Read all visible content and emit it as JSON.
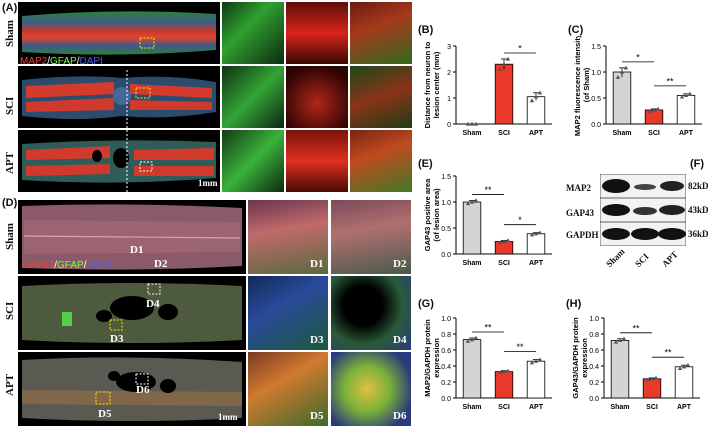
{
  "panels": {
    "A": {
      "label": "(A)",
      "rows": [
        "Sham",
        "SCI",
        "APT"
      ],
      "stain": [
        "MAP2",
        "/",
        "GFAP",
        "/",
        "DAPI"
      ],
      "scale_bar": "1mm"
    },
    "B": {
      "label": "(B)"
    },
    "C": {
      "label": "(C)"
    },
    "D": {
      "label": "(D)",
      "rows": [
        "Sham",
        "SCI",
        "APT"
      ],
      "stain": [
        "GAP43",
        "/",
        "GFAP",
        "/",
        "DAPI"
      ],
      "scale_bar": "1mm",
      "zones": [
        "D1",
        "D2",
        "D3",
        "D4",
        "D5",
        "D6"
      ]
    },
    "E": {
      "label": "(E)"
    },
    "F": {
      "label": "(F)",
      "blot_rows": [
        "MAP2",
        "GAP43",
        "GAPDH"
      ],
      "sizes": [
        "82kD",
        "43kD",
        "36kD"
      ],
      "lanes": [
        "Sham",
        "SCI",
        "APT"
      ]
    },
    "G": {
      "label": "(G)"
    },
    "H": {
      "label": "(H)"
    }
  },
  "colors": {
    "sham": "#d4d4d4",
    "sci": "#e8392b",
    "apt": "#ffffff",
    "red_stain": "#ff3b2f",
    "green_stain": "#7dff3a",
    "blue_stain": "#4a5cff"
  },
  "chart_data": [
    {
      "id": "B",
      "type": "bar",
      "categories": [
        "Sham",
        "SCI",
        "APT"
      ],
      "values": [
        0,
        2.3,
        1.05
      ],
      "points": [
        [
          0,
          0,
          0
        ],
        [
          2.1,
          2.3,
          2.5
        ],
        [
          0.9,
          1.05,
          1.2
        ]
      ],
      "ylabel": "Distance from neuron to lesion center (mm)",
      "ylim": [
        0,
        3
      ],
      "yticks": [
        "0",
        "1",
        "2",
        "3"
      ],
      "sig": [
        {
          "from": 1,
          "to": 2,
          "text": "*"
        }
      ]
    },
    {
      "id": "C",
      "type": "bar",
      "categories": [
        "Sham",
        "SCI",
        "APT"
      ],
      "values": [
        1.0,
        0.27,
        0.55
      ],
      "points": [
        [
          0.9,
          1.0,
          1.08
        ],
        [
          0.25,
          0.27,
          0.29
        ],
        [
          0.52,
          0.55,
          0.58
        ]
      ],
      "ylabel": "MAP2 fluorescence intensity (of Sham)",
      "ylim": [
        0,
        1.5
      ],
      "yticks": [
        "0.0",
        "0.5",
        "1.0",
        "1.5"
      ],
      "sig": [
        {
          "from": 0,
          "to": 1,
          "text": "*"
        },
        {
          "from": 1,
          "to": 2,
          "text": "**"
        }
      ]
    },
    {
      "id": "E",
      "type": "bar",
      "categories": [
        "Sham",
        "SCI",
        "APT"
      ],
      "values": [
        1.0,
        0.24,
        0.39
      ],
      "points": [
        [
          0.97,
          1.0,
          1.03
        ],
        [
          0.22,
          0.24,
          0.26
        ],
        [
          0.37,
          0.39,
          0.41
        ]
      ],
      "ylabel": "GAP43 positive area (of lesion area)",
      "ylim": [
        0,
        1.5
      ],
      "yticks": [
        "0.0",
        "0.5",
        "1.0",
        "1.5"
      ],
      "sig": [
        {
          "from": 0,
          "to": 1,
          "text": "**"
        },
        {
          "from": 1,
          "to": 2,
          "text": "*"
        }
      ]
    },
    {
      "id": "G",
      "type": "bar",
      "categories": [
        "Sham",
        "SCI",
        "APT"
      ],
      "values": [
        0.73,
        0.33,
        0.46
      ],
      "points": [
        [
          0.71,
          0.73,
          0.75
        ],
        [
          0.32,
          0.33,
          0.34
        ],
        [
          0.44,
          0.46,
          0.48
        ]
      ],
      "ylabel": "MAP2/GAPDH protein expression",
      "ylim": [
        0,
        1.0
      ],
      "yticks": [
        "0.0",
        "0.2",
        "0.4",
        "0.6",
        "0.8",
        "1.0"
      ],
      "sig": [
        {
          "from": 0,
          "to": 1,
          "text": "**"
        },
        {
          "from": 1,
          "to": 2,
          "text": "**"
        }
      ]
    },
    {
      "id": "H",
      "type": "bar",
      "categories": [
        "Sham",
        "SCI",
        "APT"
      ],
      "values": [
        0.72,
        0.24,
        0.39
      ],
      "points": [
        [
          0.7,
          0.72,
          0.74
        ],
        [
          0.23,
          0.24,
          0.25
        ],
        [
          0.37,
          0.39,
          0.41
        ]
      ],
      "ylabel": "GAP43/GAPDH protein expression",
      "ylim": [
        0,
        1.0
      ],
      "yticks": [
        "0.0",
        "0.2",
        "0.4",
        "0.6",
        "0.8",
        "1.0"
      ],
      "sig": [
        {
          "from": 0,
          "to": 1,
          "text": "**"
        },
        {
          "from": 1,
          "to": 2,
          "text": "**"
        }
      ]
    }
  ]
}
